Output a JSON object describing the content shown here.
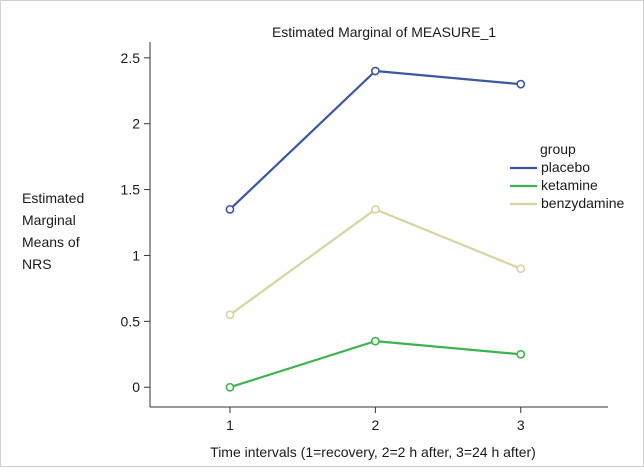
{
  "chart_data": {
    "type": "line",
    "title": "Estimated Marginal of MEASURE_1",
    "xlabel": "Time intervals (1=recovery, 2=2 h after, 3=24 h after)",
    "ylabel_lines": [
      "Estimated",
      "Marginal",
      "Means of",
      "NRS"
    ],
    "x": [
      1,
      2,
      3
    ],
    "x_tick_labels": [
      "1",
      "2",
      "3"
    ],
    "y_tick_values": [
      0,
      0.5,
      1,
      1.5,
      2,
      2.5
    ],
    "y_tick_labels": [
      "0",
      "0.5",
      "1",
      "1.5",
      "2",
      "2.5"
    ],
    "ylim": [
      -0.15,
      2.62
    ],
    "xlim": [
      0.45,
      3.6
    ],
    "grid": false,
    "legend": {
      "title": "group",
      "placement": "right"
    },
    "series": [
      {
        "name": "placebo",
        "color": "#3a56a5",
        "values": [
          1.35,
          2.4,
          2.3
        ]
      },
      {
        "name": "ketamine",
        "color": "#3cb44b",
        "values": [
          0.0,
          0.35,
          0.25
        ]
      },
      {
        "name": "benzydamine",
        "color": "#d8d3a0",
        "values": [
          0.55,
          1.35,
          0.9
        ]
      }
    ],
    "marker": "circle"
  },
  "style": {
    "frame_color": "#cfcfcf",
    "axis_color": "#333333"
  }
}
